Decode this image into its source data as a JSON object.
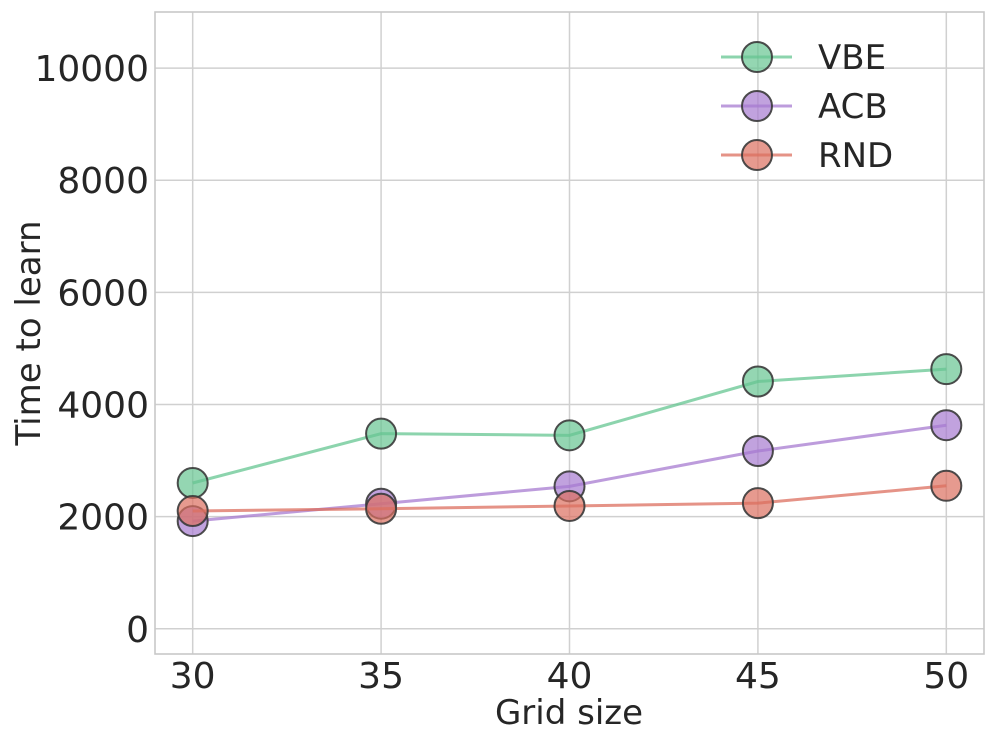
{
  "chart_data": {
    "type": "line",
    "title": "",
    "xlabel": "Grid size",
    "ylabel": "Time to learn",
    "x": [
      30,
      35,
      40,
      45,
      50
    ],
    "xlim": [
      29,
      51
    ],
    "ylim": [
      -450,
      11000
    ],
    "xticks": [
      30,
      35,
      40,
      45,
      50
    ],
    "yticks": [
      0,
      2000,
      4000,
      6000,
      8000,
      10000
    ],
    "grid": true,
    "legend_position": "top-right",
    "series": [
      {
        "name": "VBE",
        "color": "#66c592",
        "values": [
          2600,
          3480,
          3450,
          4410,
          4630
        ]
      },
      {
        "name": "ACB",
        "color": "#a77bd0",
        "values": [
          1920,
          2230,
          2540,
          3170,
          3630
        ]
      },
      {
        "name": "RND",
        "color": "#dc6f5f",
        "values": [
          2100,
          2140,
          2190,
          2240,
          2550
        ]
      }
    ]
  }
}
